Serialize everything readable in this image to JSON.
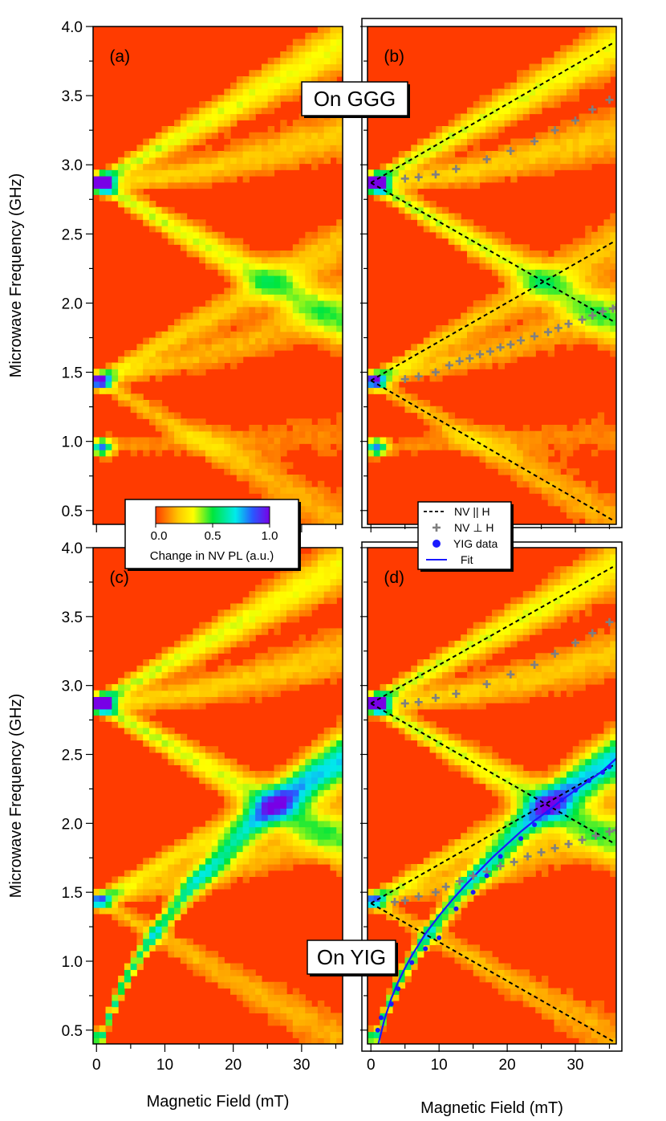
{
  "chart_data": [
    {
      "id": "a",
      "type": "heatmap",
      "panel_label": "(a)",
      "xlabel": "",
      "ylabel": "Microwave Frequency (GHz)",
      "xlim": [
        -0.5,
        36
      ],
      "ylim": [
        0.4,
        4.0
      ],
      "yticks": [
        "0.5",
        "1.0",
        "1.5",
        "2.0",
        "2.5",
        "3.0",
        "3.5",
        "4.0"
      ],
      "branches": [
        {
          "points": [
            [
              0,
              2.87
            ],
            [
              35,
              3.85
            ]
          ],
          "strength": 0.4
        },
        {
          "points": [
            [
              0,
              2.87
            ],
            [
              35,
              1.88
            ]
          ],
          "strength": 0.4
        },
        {
          "points": [
            [
              0,
              2.87
            ],
            [
              5,
              2.88
            ],
            [
              15,
              2.96
            ],
            [
              25,
              3.08
            ],
            [
              35,
              3.22
            ]
          ],
          "strength": 0.25
        },
        {
          "points": [
            [
              0,
              1.44
            ],
            [
              35,
              2.42
            ]
          ],
          "strength": 0.25
        },
        {
          "points": [
            [
              0,
              1.44
            ],
            [
              35,
              0.45
            ]
          ],
          "strength": 0.2
        },
        {
          "points": [
            [
              0,
              1.44
            ],
            [
              10,
              1.55
            ],
            [
              20,
              1.68
            ],
            [
              35,
              1.96
            ]
          ],
          "strength": 0.2
        },
        {
          "points": [
            [
              0,
              0.96
            ],
            [
              15,
              1.0
            ],
            [
              35,
              1.05
            ]
          ],
          "strength": 0.12
        }
      ],
      "hotspots": [
        [
          0.8,
          2.87,
          1.0
        ],
        [
          0.8,
          1.44,
          0.55
        ],
        [
          0.8,
          0.96,
          0.7
        ]
      ]
    },
    {
      "id": "b",
      "type": "heatmap",
      "panel_label": "(b)",
      "xlabel": "",
      "ylabel": "",
      "xlim": [
        -0.5,
        36
      ],
      "ylim": [
        0.4,
        4.0
      ],
      "callout": "On GGG",
      "branches": [
        {
          "points": [
            [
              0,
              2.87
            ],
            [
              35,
              3.85
            ]
          ],
          "strength": 0.4
        },
        {
          "points": [
            [
              0,
              2.87
            ],
            [
              35,
              1.88
            ]
          ],
          "strength": 0.4
        },
        {
          "points": [
            [
              0,
              2.87
            ],
            [
              5,
              2.88
            ],
            [
              15,
              2.96
            ],
            [
              25,
              3.08
            ],
            [
              35,
              3.22
            ]
          ],
          "strength": 0.25
        },
        {
          "points": [
            [
              0,
              1.44
            ],
            [
              35,
              2.42
            ]
          ],
          "strength": 0.25
        },
        {
          "points": [
            [
              0,
              1.44
            ],
            [
              35,
              0.45
            ]
          ],
          "strength": 0.2
        },
        {
          "points": [
            [
              0,
              1.44
            ],
            [
              10,
              1.55
            ],
            [
              20,
              1.68
            ],
            [
              35,
              1.96
            ]
          ],
          "strength": 0.2
        },
        {
          "points": [
            [
              0,
              0.96
            ],
            [
              15,
              1.0
            ],
            [
              35,
              1.05
            ]
          ],
          "strength": 0.12
        }
      ],
      "hotspots": [
        [
          0.8,
          2.87,
          1.0
        ],
        [
          0.8,
          1.44,
          0.55
        ],
        [
          0.8,
          0.96,
          0.7
        ]
      ],
      "lines": [
        {
          "x": [
            0,
            35.5
          ],
          "y": [
            2.87,
            3.88
          ]
        },
        {
          "x": [
            0,
            35.5
          ],
          "y": [
            2.87,
            1.87
          ]
        },
        {
          "x": [
            0,
            35.5
          ],
          "y": [
            1.44,
            2.44
          ]
        },
        {
          "x": [
            0,
            35.5
          ],
          "y": [
            1.44,
            0.43
          ]
        }
      ],
      "nv_perp": {
        "x": [
          5,
          7,
          9.5,
          11.5,
          13,
          14.5,
          16,
          17.5,
          19,
          20.5,
          22,
          24,
          26,
          27.5,
          29,
          31,
          32.5,
          34,
          35.5,
          36,
          5,
          7,
          9.5,
          12.5,
          17,
          20.5,
          24,
          27,
          30,
          32.5,
          35
        ],
        "y": [
          1.45,
          1.47,
          1.5,
          1.55,
          1.58,
          1.6,
          1.63,
          1.65,
          1.68,
          1.7,
          1.73,
          1.76,
          1.79,
          1.82,
          1.85,
          1.88,
          1.91,
          1.94,
          1.96,
          1.97,
          2.9,
          2.91,
          2.93,
          2.97,
          3.04,
          3.1,
          3.17,
          3.25,
          3.32,
          3.4,
          3.47
        ]
      }
    },
    {
      "id": "c",
      "type": "heatmap",
      "panel_label": "(c)",
      "xlabel": "Magnetic Field (mT)",
      "ylabel": "Microwave Frequency (GHz)",
      "xlim": [
        -0.5,
        36
      ],
      "ylim": [
        0.4,
        4.0
      ],
      "xticks": [
        "0",
        "10",
        "20",
        "30"
      ],
      "yticks": [
        "0.5",
        "1.0",
        "1.5",
        "2.0",
        "2.5",
        "3.0",
        "3.5",
        "4.0"
      ],
      "branches": [
        {
          "points": [
            [
              0,
              2.87
            ],
            [
              35,
              3.85
            ]
          ],
          "strength": 0.4
        },
        {
          "points": [
            [
              0,
              2.87
            ],
            [
              35,
              1.88
            ]
          ],
          "strength": 0.4
        },
        {
          "points": [
            [
              0,
              2.87
            ],
            [
              5,
              2.88
            ],
            [
              15,
              2.96
            ],
            [
              25,
              3.08
            ],
            [
              35,
              3.22
            ]
          ],
          "strength": 0.25
        },
        {
          "points": [
            [
              0,
              1.44
            ],
            [
              35,
              2.42
            ]
          ],
          "strength": 0.3
        },
        {
          "points": [
            [
              0,
              1.44
            ],
            [
              35,
              0.45
            ]
          ],
          "strength": 0.2
        },
        {
          "points": [
            [
              0,
              1.44
            ],
            [
              10,
              1.55
            ],
            [
              20,
              1.68
            ],
            [
              35,
              1.96
            ]
          ],
          "strength": 0.2
        },
        {
          "points": [
            [
              0.8,
              0.45
            ],
            [
              2,
              0.62
            ],
            [
              4,
              0.85
            ],
            [
              7,
              1.1
            ],
            [
              10,
              1.3
            ],
            [
              14,
              1.55
            ],
            [
              18,
              1.75
            ],
            [
              22,
              1.95
            ],
            [
              26,
              2.12
            ],
            [
              30,
              2.28
            ],
            [
              35,
              2.45
            ]
          ],
          "strength": 0.6
        }
      ],
      "hotspots": [
        [
          0.8,
          2.87,
          1.0
        ],
        [
          0.8,
          1.44,
          0.3
        ]
      ]
    },
    {
      "id": "d",
      "type": "heatmap",
      "panel_label": "(d)",
      "xlabel": "Magnetic Field (mT)",
      "ylabel": "",
      "xlim": [
        -0.5,
        36
      ],
      "ylim": [
        0.4,
        4.0
      ],
      "xticks": [
        "0",
        "10",
        "20",
        "30"
      ],
      "callout": "On YIG",
      "branches": [
        {
          "points": [
            [
              0,
              2.87
            ],
            [
              35,
              3.85
            ]
          ],
          "strength": 0.4
        },
        {
          "points": [
            [
              0,
              2.87
            ],
            [
              35,
              1.88
            ]
          ],
          "strength": 0.4
        },
        {
          "points": [
            [
              0,
              2.87
            ],
            [
              5,
              2.88
            ],
            [
              15,
              2.96
            ],
            [
              25,
              3.08
            ],
            [
              35,
              3.22
            ]
          ],
          "strength": 0.25
        },
        {
          "points": [
            [
              0,
              1.44
            ],
            [
              35,
              2.42
            ]
          ],
          "strength": 0.3
        },
        {
          "points": [
            [
              0,
              1.44
            ],
            [
              35,
              0.45
            ]
          ],
          "strength": 0.2
        },
        {
          "points": [
            [
              0,
              1.44
            ],
            [
              10,
              1.55
            ],
            [
              20,
              1.68
            ],
            [
              35,
              1.96
            ]
          ],
          "strength": 0.2
        },
        {
          "points": [
            [
              0.8,
              0.45
            ],
            [
              2,
              0.62
            ],
            [
              4,
              0.85
            ],
            [
              7,
              1.1
            ],
            [
              10,
              1.3
            ],
            [
              14,
              1.55
            ],
            [
              18,
              1.75
            ],
            [
              22,
              1.95
            ],
            [
              26,
              2.12
            ],
            [
              30,
              2.28
            ],
            [
              35,
              2.45
            ]
          ],
          "strength": 0.6
        }
      ],
      "hotspots": [
        [
          0.8,
          2.87,
          1.0
        ],
        [
          0.8,
          1.44,
          0.3
        ]
      ],
      "lines": [
        {
          "x": [
            0,
            35.5
          ],
          "y": [
            2.87,
            3.86
          ]
        },
        {
          "x": [
            0,
            35.5
          ],
          "y": [
            2.87,
            1.86
          ]
        },
        {
          "x": [
            0,
            35.5
          ],
          "y": [
            1.42,
            2.42
          ]
        },
        {
          "x": [
            0,
            35.5
          ],
          "y": [
            1.42,
            0.42
          ]
        }
      ],
      "nv_perp": {
        "x": [
          3.5,
          5,
          7,
          9.5,
          11,
          13,
          15,
          17,
          19,
          21,
          23,
          25,
          27,
          29,
          31,
          33,
          35,
          36,
          5,
          7,
          9.5,
          12.5,
          17,
          20.5,
          24,
          27,
          30,
          32.5,
          35
        ],
        "y": [
          1.43,
          1.44,
          1.47,
          1.5,
          1.54,
          1.58,
          1.62,
          1.65,
          1.69,
          1.72,
          1.76,
          1.79,
          1.82,
          1.85,
          1.88,
          1.91,
          1.94,
          1.95,
          2.87,
          2.88,
          2.91,
          2.94,
          3.01,
          3.08,
          3.15,
          3.23,
          3.31,
          3.38,
          3.46
        ]
      },
      "yig": {
        "x": [
          1,
          1.5,
          3,
          4,
          6,
          8,
          10,
          12.5,
          15,
          17,
          19,
          22,
          24,
          26,
          28,
          30,
          32,
          34,
          35
        ],
        "y": [
          0.5,
          0.59,
          0.69,
          0.8,
          0.99,
          1.09,
          1.17,
          1.38,
          1.5,
          1.62,
          1.76,
          1.89,
          1.99,
          2.08,
          2.17,
          2.24,
          2.31,
          2.37,
          2.41
        ]
      },
      "fit": {
        "x": [
          1,
          2,
          3,
          4,
          5,
          6,
          8,
          10,
          12,
          14,
          16,
          18,
          20,
          22,
          24,
          26,
          28,
          30,
          32,
          34,
          36
        ],
        "y": [
          0.38,
          0.58,
          0.73,
          0.85,
          0.95,
          1.04,
          1.2,
          1.33,
          1.45,
          1.56,
          1.66,
          1.76,
          1.85,
          1.94,
          2.02,
          2.09,
          2.17,
          2.24,
          2.31,
          2.38,
          2.47
        ]
      }
    }
  ],
  "legend": {
    "entries": [
      "NV || H",
      "NV ⊥ H",
      "YIG data",
      "Fit"
    ]
  },
  "colorbar": {
    "ticks": [
      "0.0",
      "0.5",
      "1.0"
    ],
    "label": "Change in NV PL (a.u.)"
  },
  "colors": {
    "background": "#ff3b00",
    "dashed": "#000000",
    "nv_perp": "#7f7f7f",
    "yig": "#1a1aff",
    "fit": "#1a1aff"
  }
}
